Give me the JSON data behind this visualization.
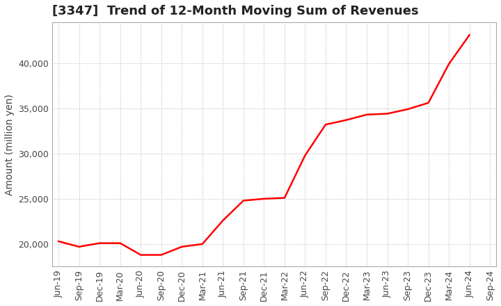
{
  "title": "[3347]  Trend of 12-Month Moving Sum of Revenues",
  "ylabel": "Amount (million yen)",
  "background_color": "#ffffff",
  "plot_bg_color": "#ffffff",
  "grid_color": "#bbbbbb",
  "line_color": "#ff0000",
  "line_width": 1.8,
  "x_labels": [
    "Jun-19",
    "Sep-19",
    "Dec-19",
    "Mar-20",
    "Jun-20",
    "Sep-20",
    "Dec-20",
    "Mar-21",
    "Jun-21",
    "Sep-21",
    "Dec-21",
    "Mar-22",
    "Jun-22",
    "Sep-22",
    "Dec-22",
    "Mar-23",
    "Jun-23",
    "Sep-23",
    "Dec-23",
    "Mar-24",
    "Jun-24",
    "Sep-24"
  ],
  "y_values": [
    20300,
    19700,
    20100,
    20100,
    18800,
    18800,
    19700,
    20000,
    22600,
    24800,
    25000,
    25100,
    29800,
    33200,
    33700,
    34300,
    34400,
    34900,
    35600,
    39900,
    43100,
    null
  ],
  "ylim": [
    17500,
    44500
  ],
  "yticks": [
    20000,
    25000,
    30000,
    35000,
    40000
  ],
  "title_fontsize": 13,
  "ylabel_fontsize": 10,
  "tick_fontsize": 9
}
